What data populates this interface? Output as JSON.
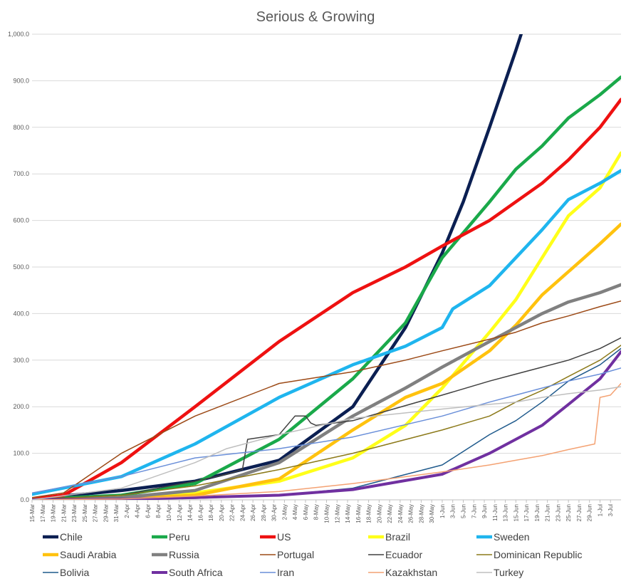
{
  "chart_data": {
    "type": "line",
    "title": "Serious & Growing",
    "xlabel": "",
    "ylabel": "",
    "ylim": [
      0,
      1000
    ],
    "yticks": [
      "0.0",
      "100.0",
      "200.0",
      "300.0",
      "400.0",
      "500.0",
      "600.0",
      "700.0",
      "800.0",
      "900.0",
      "1,000.0"
    ],
    "xticks": [
      "15-Mar",
      "17-Mar",
      "19-Mar",
      "21-Mar",
      "23-Mar",
      "25-Mar",
      "27-Mar",
      "29-Mar",
      "31-Mar",
      "2-Apr",
      "4-Apr",
      "6-Apr",
      "8-Apr",
      "10-Apr",
      "12-Apr",
      "14-Apr",
      "16-Apr",
      "18-Apr",
      "20-Apr",
      "22-Apr",
      "24-Apr",
      "26-Apr",
      "28-Apr",
      "30-Apr",
      "2-May",
      "4-May",
      "6-May",
      "8-May",
      "10-May",
      "12-May",
      "14-May",
      "16-May",
      "18-May",
      "20-May",
      "22-May",
      "24-May",
      "26-May",
      "28-May",
      "30-May",
      "1-Jun",
      "3-Jun",
      "5-Jun",
      "7-Jun",
      "9-Jun",
      "11-Jun",
      "13-Jun",
      "15-Jun",
      "17-Jun",
      "19-Jun",
      "21-Jun",
      "23-Jun",
      "25-Jun",
      "27-Jun",
      "29-Jun",
      "1-Jul",
      "3-Jul"
    ],
    "x_start": "15-Mar",
    "x_end": "5-Jul",
    "grid": true,
    "legend_position": "bottom",
    "series": [
      {
        "name": "Chile",
        "color": "#0b1f52",
        "width": 4.5,
        "x": [
          "15-Mar",
          "1-Apr",
          "15-Apr",
          "1-May",
          "15-May",
          "25-May",
          "1-Jun",
          "5-Jun",
          "10-Jun",
          "15-Jun",
          "16-Jun"
        ],
        "values": [
          2,
          20,
          40,
          85,
          200,
          370,
          530,
          640,
          800,
          965,
          1000
        ]
      },
      {
        "name": "Peru",
        "color": "#1aa94a",
        "width": 4.5,
        "x": [
          "15-Mar",
          "1-Apr",
          "15-Apr",
          "1-May",
          "15-May",
          "25-May",
          "1-Jun",
          "10-Jun",
          "15-Jun",
          "20-Jun",
          "25-Jun",
          "1-Jul",
          "5-Jul"
        ],
        "values": [
          1,
          10,
          35,
          130,
          260,
          380,
          520,
          640,
          710,
          760,
          820,
          870,
          908
        ]
      },
      {
        "name": "US",
        "color": "#ee1111",
        "width": 4.5,
        "x": [
          "15-Mar",
          "21-Mar",
          "1-Apr",
          "15-Apr",
          "1-May",
          "15-May",
          "25-May",
          "1-Jun",
          "10-Jun",
          "15-Jun",
          "20-Jun",
          "25-Jun",
          "1-Jul",
          "5-Jul"
        ],
        "values": [
          1,
          10,
          80,
          200,
          340,
          445,
          500,
          545,
          600,
          640,
          680,
          730,
          800,
          860
        ]
      },
      {
        "name": "Brazil",
        "color": "#ffff19",
        "width": 4.5,
        "x": [
          "15-Mar",
          "1-Apr",
          "15-Apr",
          "1-May",
          "15-May",
          "25-May",
          "1-Jun",
          "10-Jun",
          "15-Jun",
          "20-Jun",
          "25-Jun",
          "1-Jul",
          "5-Jul"
        ],
        "values": [
          0,
          5,
          15,
          40,
          90,
          160,
          240,
          360,
          430,
          520,
          610,
          670,
          745
        ]
      },
      {
        "name": "Sweden",
        "color": "#1fb5ee",
        "width": 4.5,
        "x": [
          "15-Mar",
          "1-Apr",
          "15-Apr",
          "1-May",
          "15-May",
          "25-May",
          "1-Jun",
          "3-Jun",
          "10-Jun",
          "15-Jun",
          "20-Jun",
          "25-Jun",
          "1-Jul",
          "5-Jul"
        ],
        "values": [
          12,
          50,
          120,
          220,
          290,
          330,
          370,
          410,
          460,
          520,
          580,
          645,
          680,
          707
        ]
      },
      {
        "name": "Saudi Arabia",
        "color": "#ffc20e",
        "width": 4.5,
        "x": [
          "15-Mar",
          "1-Apr",
          "15-Apr",
          "1-May",
          "15-May",
          "25-May",
          "1-Jun",
          "10-Jun",
          "15-Jun",
          "20-Jun",
          "25-Jun",
          "1-Jul",
          "5-Jul"
        ],
        "values": [
          0,
          2,
          10,
          45,
          150,
          220,
          250,
          320,
          375,
          440,
          490,
          550,
          592
        ]
      },
      {
        "name": "Russia",
        "color": "#808080",
        "width": 4.5,
        "x": [
          "15-Mar",
          "1-Apr",
          "15-Apr",
          "1-May",
          "15-May",
          "25-May",
          "1-Jun",
          "10-Jun",
          "15-Jun",
          "20-Jun",
          "25-Jun",
          "1-Jul",
          "5-Jul"
        ],
        "values": [
          0,
          5,
          20,
          80,
          180,
          240,
          285,
          340,
          370,
          400,
          425,
          445,
          462
        ]
      },
      {
        "name": "Portugal",
        "color": "#9c4a17",
        "width": 1.5,
        "x": [
          "15-Mar",
          "21-Mar",
          "1-Apr",
          "15-Apr",
          "1-May",
          "15-May",
          "25-May",
          "1-Jun",
          "10-Jun",
          "15-Jun",
          "20-Jun",
          "25-Jun",
          "1-Jul",
          "5-Jul"
        ],
        "values": [
          5,
          15,
          100,
          180,
          250,
          275,
          300,
          320,
          345,
          360,
          380,
          395,
          415,
          427
        ]
      },
      {
        "name": "Ecuador",
        "color": "#404040",
        "width": 1.5,
        "x": [
          "15-Mar",
          "1-Apr",
          "15-Apr",
          "21-Apr",
          "24-Apr",
          "25-Apr",
          "1-May",
          "4-May",
          "6-May",
          "7-May",
          "8-May",
          "15-May",
          "1-Jun",
          "10-Jun",
          "15-Jun",
          "20-Jun",
          "25-Jun",
          "1-Jul",
          "5-Jul"
        ],
        "values": [
          1,
          10,
          40,
          55,
          65,
          130,
          140,
          180,
          180,
          165,
          160,
          170,
          225,
          255,
          270,
          285,
          300,
          325,
          348
        ]
      },
      {
        "name": "Dominican Republic",
        "color": "#8c7a1a",
        "width": 1.5,
        "x": [
          "15-Mar",
          "1-Apr",
          "15-Apr",
          "1-May",
          "15-May",
          "1-Jun",
          "10-Jun",
          "15-Jun",
          "20-Jun",
          "25-Jun",
          "1-Jul",
          "5-Jul"
        ],
        "values": [
          0,
          10,
          30,
          65,
          100,
          150,
          180,
          210,
          235,
          265,
          300,
          332
        ]
      },
      {
        "name": "Bolivia",
        "color": "#1f5a8c",
        "width": 1.5,
        "x": [
          "15-Mar",
          "1-Apr",
          "15-Apr",
          "1-May",
          "15-May",
          "1-Jun",
          "10-Jun",
          "15-Jun",
          "20-Jun",
          "25-Jun",
          "1-Jul",
          "5-Jul"
        ],
        "values": [
          0,
          1,
          3,
          10,
          25,
          75,
          140,
          170,
          210,
          255,
          290,
          325
        ]
      },
      {
        "name": "South Africa",
        "color": "#7030a0",
        "width": 4,
        "x": [
          "15-Mar",
          "1-Apr",
          "15-Apr",
          "1-May",
          "15-May",
          "1-Jun",
          "10-Jun",
          "15-Jun",
          "20-Jun",
          "25-Jun",
          "1-Jul",
          "5-Jul"
        ],
        "values": [
          0,
          1,
          5,
          10,
          22,
          55,
          100,
          130,
          160,
          205,
          260,
          318
        ]
      },
      {
        "name": "Iran",
        "color": "#6a8fd9",
        "width": 1.5,
        "x": [
          "15-Mar",
          "1-Apr",
          "15-Apr",
          "1-May",
          "15-May",
          "1-Jun",
          "10-Jun",
          "15-Jun",
          "20-Jun",
          "25-Jun",
          "1-Jul",
          "5-Jul"
        ],
        "values": [
          15,
          50,
          90,
          110,
          135,
          180,
          210,
          225,
          240,
          255,
          270,
          283
        ]
      },
      {
        "name": "Kazakhstan",
        "color": "#f4a273",
        "width": 1.5,
        "x": [
          "15-Mar",
          "1-Apr",
          "15-Apr",
          "1-May",
          "15-May",
          "1-Jun",
          "10-Jun",
          "15-Jun",
          "20-Jun",
          "25-Jun",
          "30-Jun",
          "1-Jul",
          "3-Jul",
          "5-Jul"
        ],
        "values": [
          0,
          2,
          8,
          18,
          35,
          60,
          75,
          85,
          95,
          108,
          120,
          220,
          225,
          250
        ]
      },
      {
        "name": "Turkey",
        "color": "#bfbfbf",
        "width": 1.5,
        "x": [
          "15-Mar",
          "1-Apr",
          "15-Apr",
          "21-Apr",
          "1-May",
          "15-May",
          "1-Jun",
          "10-Jun",
          "15-Jun",
          "20-Jun",
          "25-Jun",
          "1-Jul",
          "5-Jul"
        ],
        "values": [
          0,
          25,
          80,
          110,
          140,
          175,
          195,
          205,
          210,
          220,
          228,
          236,
          243
        ]
      }
    ]
  }
}
